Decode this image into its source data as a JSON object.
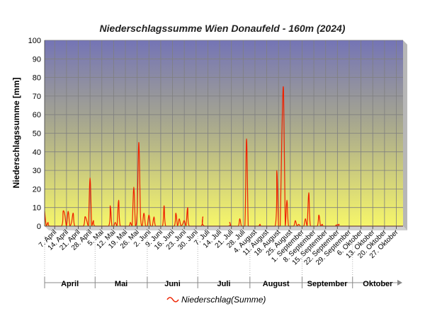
{
  "chart_data": {
    "type": "line",
    "title": "Niederschlagssumme Wien Donaufeld - 160m (2024)",
    "ylabel": "Niederschlagssumme [mm]",
    "xlabel": "",
    "ylim": [
      0,
      100
    ],
    "yticks": [
      0,
      10,
      20,
      30,
      40,
      50,
      60,
      70,
      80,
      90,
      100
    ],
    "grid": true,
    "x_start": "2024-04-01",
    "x_end": "2024-10-31",
    "xtick_labels": [
      {
        "date": "2024-04-07",
        "label": "7. April"
      },
      {
        "date": "2024-04-14",
        "label": "14. April"
      },
      {
        "date": "2024-04-21",
        "label": "21. April"
      },
      {
        "date": "2024-04-28",
        "label": "28. April"
      },
      {
        "date": "2024-05-05",
        "label": "5. Mai"
      },
      {
        "date": "2024-05-12",
        "label": "12. Mai"
      },
      {
        "date": "2024-05-19",
        "label": "19. Mai"
      },
      {
        "date": "2024-05-26",
        "label": "26. Mai"
      },
      {
        "date": "2024-06-02",
        "label": "2. Juni"
      },
      {
        "date": "2024-06-09",
        "label": "9. Juni"
      },
      {
        "date": "2024-06-16",
        "label": "16. Juni"
      },
      {
        "date": "2024-06-23",
        "label": "23. Juni"
      },
      {
        "date": "2024-06-30",
        "label": "30. Juni"
      },
      {
        "date": "2024-07-07",
        "label": "7. Juli"
      },
      {
        "date": "2024-07-14",
        "label": "14. Juli"
      },
      {
        "date": "2024-07-21",
        "label": "21. Juli"
      },
      {
        "date": "2024-07-28",
        "label": "28. Juli"
      },
      {
        "date": "2024-08-04",
        "label": "4. August"
      },
      {
        "date": "2024-08-11",
        "label": "11. August"
      },
      {
        "date": "2024-08-18",
        "label": "18. August"
      },
      {
        "date": "2024-08-25",
        "label": "25. August"
      },
      {
        "date": "2024-09-01",
        "label": "1. September"
      },
      {
        "date": "2024-09-08",
        "label": "8. September"
      },
      {
        "date": "2024-09-15",
        "label": "15. September"
      },
      {
        "date": "2024-09-22",
        "label": "22. September"
      },
      {
        "date": "2024-09-29",
        "label": "29. September"
      },
      {
        "date": "2024-10-06",
        "label": "6. Oktober"
      },
      {
        "date": "2024-10-13",
        "label": "13. Oktober"
      },
      {
        "date": "2024-10-20",
        "label": "20. Oktober"
      },
      {
        "date": "2024-10-27",
        "label": "27. Oktober"
      }
    ],
    "months": [
      {
        "label": "April",
        "start": "2024-04-01",
        "end": "2024-04-30"
      },
      {
        "label": "Mai",
        "start": "2024-05-01",
        "end": "2024-05-31"
      },
      {
        "label": "Juni",
        "start": "2024-06-01",
        "end": "2024-06-30"
      },
      {
        "label": "Juli",
        "start": "2024-07-01",
        "end": "2024-07-31"
      },
      {
        "label": "August",
        "start": "2024-08-01",
        "end": "2024-08-31"
      },
      {
        "label": "September",
        "start": "2024-09-01",
        "end": "2024-09-30"
      },
      {
        "label": "Oktober",
        "start": "2024-10-01",
        "end": "2024-10-31"
      }
    ],
    "legend_position": "bottom-center",
    "series": [
      {
        "name": "Niederschlag(Summe)",
        "color": "#ee2200",
        "points": [
          [
            "2024-04-01",
            8
          ],
          [
            "2024-04-02",
            0
          ],
          [
            "2024-04-03",
            2
          ],
          [
            "2024-04-04",
            0
          ],
          [
            "2024-04-11",
            0
          ],
          [
            "2024-04-12",
            8
          ],
          [
            "2024-04-13",
            6
          ],
          [
            "2024-04-14",
            0
          ],
          [
            "2024-04-15",
            8
          ],
          [
            "2024-04-16",
            0
          ],
          [
            "2024-04-17",
            2
          ],
          [
            "2024-04-18",
            7
          ],
          [
            "2024-04-19",
            0
          ],
          [
            "2024-04-24",
            0
          ],
          [
            "2024-04-25",
            5
          ],
          [
            "2024-04-26",
            3
          ],
          [
            "2024-04-27",
            0
          ],
          [
            "2024-04-28",
            26
          ],
          [
            "2024-04-29",
            0
          ],
          [
            "2024-04-30",
            3
          ],
          [
            "2024-05-01",
            0
          ],
          [
            "2024-05-09",
            0
          ],
          [
            "2024-05-10",
            11
          ],
          [
            "2024-05-11",
            0
          ],
          [
            "2024-05-12",
            0
          ],
          [
            "2024-05-13",
            2
          ],
          [
            "2024-05-14",
            0
          ],
          [
            "2024-05-15",
            14
          ],
          [
            "2024-05-16",
            0
          ],
          [
            "2024-05-21",
            0
          ],
          [
            "2024-05-22",
            2
          ],
          [
            "2024-05-23",
            0
          ],
          [
            "2024-05-24",
            21
          ],
          [
            "2024-05-25",
            0
          ],
          [
            "2024-05-26",
            8
          ],
          [
            "2024-05-27",
            45
          ],
          [
            "2024-05-28",
            5
          ],
          [
            "2024-05-29",
            0
          ],
          [
            "2024-05-30",
            7
          ],
          [
            "2024-05-31",
            0
          ],
          [
            "2024-06-01",
            0
          ],
          [
            "2024-06-02",
            6
          ],
          [
            "2024-06-03",
            0
          ],
          [
            "2024-06-04",
            0
          ],
          [
            "2024-06-05",
            5
          ],
          [
            "2024-06-06",
            0
          ],
          [
            "2024-06-10",
            0
          ],
          [
            "2024-06-11",
            11
          ],
          [
            "2024-06-12",
            0
          ],
          [
            "2024-06-17",
            0
          ],
          [
            "2024-06-18",
            7
          ],
          [
            "2024-06-19",
            0
          ],
          [
            "2024-06-20",
            4
          ],
          [
            "2024-06-21",
            0
          ],
          [
            "2024-06-22",
            1
          ],
          [
            "2024-06-23",
            3
          ],
          [
            "2024-06-24",
            0
          ],
          [
            "2024-06-25",
            10
          ],
          [
            "2024-06-26",
            0
          ],
          [
            "2024-07-03",
            0
          ],
          [
            "2024-07-04",
            5
          ],
          [
            "2024-07-05",
            0
          ],
          [
            "2024-07-19",
            0
          ],
          [
            "2024-07-20",
            2
          ],
          [
            "2024-07-21",
            0
          ],
          [
            "2024-07-25",
            0
          ],
          [
            "2024-07-26",
            4
          ],
          [
            "2024-07-27",
            0
          ],
          [
            "2024-07-29",
            0
          ],
          [
            "2024-07-30",
            47
          ],
          [
            "2024-07-31",
            0
          ],
          [
            "2024-08-01",
            0
          ],
          [
            "2024-08-06",
            0
          ],
          [
            "2024-08-07",
            1
          ],
          [
            "2024-08-08",
            0
          ],
          [
            "2024-08-16",
            0
          ],
          [
            "2024-08-17",
            30
          ],
          [
            "2024-08-18",
            0
          ],
          [
            "2024-08-19",
            0
          ],
          [
            "2024-08-20",
            50
          ],
          [
            "2024-08-21",
            73
          ],
          [
            "2024-08-22",
            0
          ],
          [
            "2024-08-23",
            14
          ],
          [
            "2024-08-24",
            0
          ],
          [
            "2024-08-27",
            0
          ],
          [
            "2024-08-28",
            3
          ],
          [
            "2024-08-29",
            0
          ],
          [
            "2024-08-30",
            1
          ],
          [
            "2024-08-31",
            0
          ],
          [
            "2024-09-02",
            0
          ],
          [
            "2024-09-03",
            4
          ],
          [
            "2024-09-04",
            0
          ],
          [
            "2024-09-05",
            18
          ],
          [
            "2024-09-06",
            0
          ],
          [
            "2024-09-10",
            0
          ],
          [
            "2024-09-11",
            6
          ],
          [
            "2024-09-12",
            0
          ],
          [
            "2024-09-13",
            1
          ],
          [
            "2024-09-14",
            0
          ],
          [
            "2024-09-22",
            0
          ],
          [
            "2024-09-23",
            1
          ],
          [
            "2024-09-24",
            0
          ],
          [
            "2024-10-31",
            0
          ]
        ]
      }
    ]
  }
}
